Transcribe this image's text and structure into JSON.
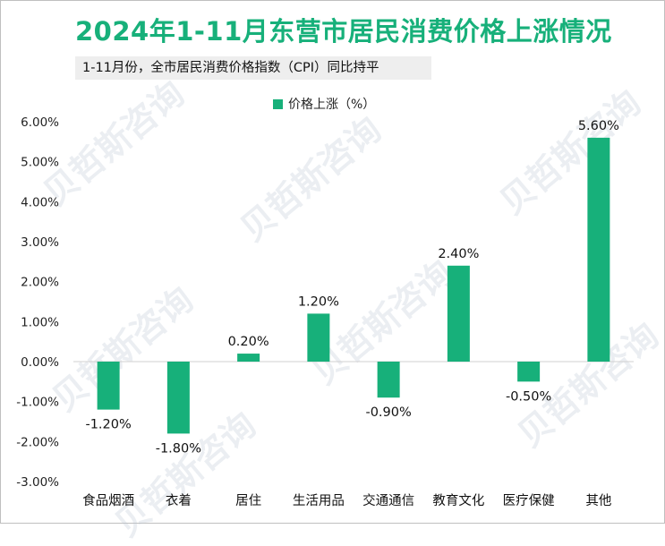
{
  "title": "2024年1-11月东营市居民消费价格上涨情况",
  "subtitle": "1-11月份，全市居民消费价格指数（CPI）同比持平",
  "watermark": "贝哲斯咨询",
  "colors": {
    "bar": "#17b07a",
    "title": "#17b07a",
    "axis": "#d0d0d0",
    "text": "#222222"
  },
  "chart_data": {
    "type": "bar",
    "categories": [
      "食品烟酒",
      "衣着",
      "居住",
      "生活用品",
      "交通通信",
      "教育文化",
      "医疗保健",
      "其他"
    ],
    "series": [
      {
        "name": "价格上涨（%）",
        "values": [
          -1.2,
          -1.8,
          0.2,
          1.2,
          -0.9,
          2.4,
          -0.5,
          5.6
        ]
      }
    ],
    "value_labels": [
      "-1.20%",
      "-1.80%",
      "0.20%",
      "1.20%",
      "-0.90%",
      "2.40%",
      "-0.50%",
      "5.60%"
    ],
    "ylim": [
      -3.0,
      6.0
    ],
    "yticks": [
      6.0,
      5.0,
      4.0,
      3.0,
      2.0,
      1.0,
      0.0,
      -1.0,
      -2.0,
      -3.0
    ],
    "ytick_labels": [
      "6.00%",
      "5.00%",
      "4.00%",
      "3.00%",
      "2.00%",
      "1.00%",
      "0.00%",
      "-1.00%",
      "-2.00%",
      "-3.00%"
    ],
    "legend_position": "top-center",
    "grid": false
  }
}
